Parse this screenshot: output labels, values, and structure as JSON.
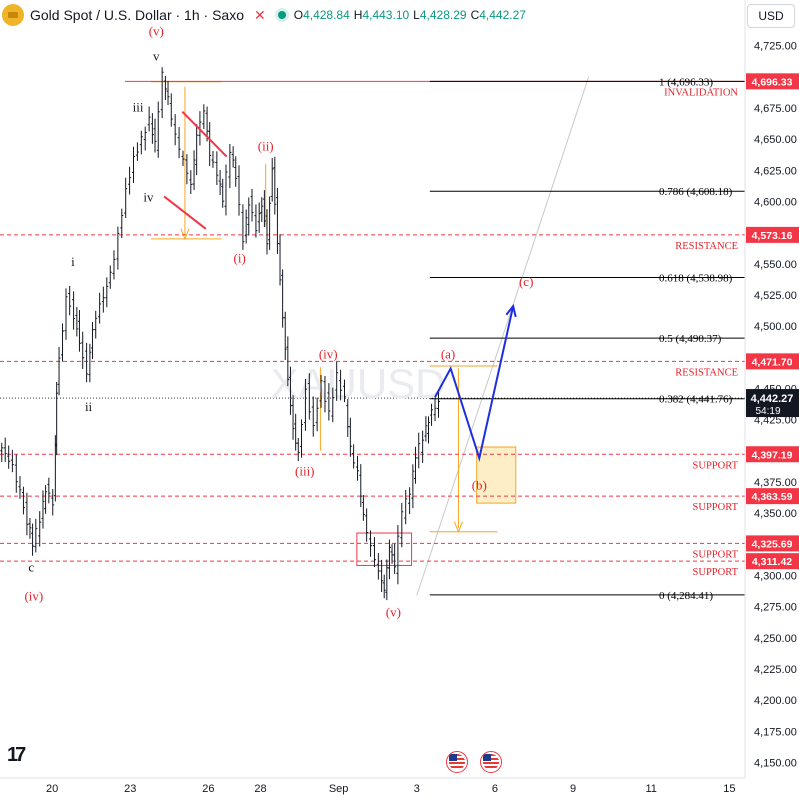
{
  "header": {
    "title": "Gold Spot / U.S. Dollar · 1h · Saxo",
    "close_icon": "close-x-icon",
    "open_label": "O",
    "open": "4,428.84",
    "high_label": "H",
    "high": "4,443.10",
    "low_label": "L",
    "low": "4,428.29",
    "close_label": "C",
    "close": "4,442.27"
  },
  "currency": "USD",
  "watermark": "XAUUSD",
  "colors": {
    "bull": "#089981",
    "bear": "#f23645",
    "fib": "#000000",
    "fib_box": "#f5a623",
    "wave_path": "#1f2fe0",
    "label_red": "#e3232c"
  },
  "chart_data": {
    "type": "line",
    "symbol": "XAUUSD",
    "interval": "1h",
    "y_axis": {
      "min": 4137.5,
      "max": 4737.5,
      "ticks": [
        4150,
        4175,
        4200,
        4225,
        4250,
        4275,
        4300,
        4325,
        4350,
        4375,
        4400,
        4425,
        4450,
        4475,
        4500,
        4525,
        4550,
        4575,
        4600,
        4625,
        4650,
        4675,
        4700,
        4725
      ],
      "tick_labels": [
        "4,150.00",
        "4,175.00",
        "4,200.00",
        "4,225.00",
        "4,250.00",
        "4,275.00",
        "4,300.00",
        "4,325.00",
        "4,350.00",
        "4,375.00",
        "4,400.00",
        "4,425.00",
        "4,450.00",
        "4,475.00",
        "4,500.00",
        "4,525.00",
        "4,550.00",
        "4,575.00",
        "4,600.00",
        "4,625.00",
        "4,650.00",
        "4,675.00",
        "4,700.00",
        "4,725.00"
      ]
    },
    "x_axis": {
      "min": 18.0,
      "max": 46.6,
      "ticks": [
        {
          "x": 20,
          "label": "20"
        },
        {
          "x": 23,
          "label": "23"
        },
        {
          "x": 26,
          "label": "26"
        },
        {
          "x": 28,
          "label": "28"
        },
        {
          "x": 31,
          "label": "Sep"
        },
        {
          "x": 34,
          "label": "3"
        },
        {
          "x": 37,
          "label": "6"
        },
        {
          "x": 40,
          "label": "9"
        },
        {
          "x": 43,
          "label": "11"
        },
        {
          "x": 46,
          "label": "15"
        }
      ]
    },
    "price_path": [
      [
        18.0,
        4400
      ],
      [
        18.4,
        4395
      ],
      [
        18.7,
        4375
      ],
      [
        19.1,
        4345
      ],
      [
        19.3,
        4325
      ],
      [
        19.6,
        4345
      ],
      [
        19.8,
        4370
      ],
      [
        20.1,
        4360
      ],
      [
        20.2,
        4450
      ],
      [
        20.6,
        4525
      ],
      [
        20.9,
        4510
      ],
      [
        21.1,
        4490
      ],
      [
        21.4,
        4465
      ],
      [
        21.6,
        4500
      ],
      [
        21.9,
        4520
      ],
      [
        22.3,
        4540
      ],
      [
        22.6,
        4575
      ],
      [
        22.9,
        4610
      ],
      [
        23.2,
        4635
      ],
      [
        23.5,
        4650
      ],
      [
        23.8,
        4665
      ],
      [
        24.0,
        4645
      ],
      [
        24.3,
        4700
      ],
      [
        24.5,
        4680
      ],
      [
        24.8,
        4650
      ],
      [
        25.1,
        4630
      ],
      [
        25.4,
        4610
      ],
      [
        25.6,
        4650
      ],
      [
        25.9,
        4670
      ],
      [
        26.1,
        4635
      ],
      [
        26.4,
        4620
      ],
      [
        26.6,
        4600
      ],
      [
        26.9,
        4640
      ],
      [
        27.1,
        4620
      ],
      [
        27.4,
        4570
      ],
      [
        27.6,
        4600
      ],
      [
        27.9,
        4580
      ],
      [
        28.1,
        4600
      ],
      [
        28.3,
        4570
      ],
      [
        28.5,
        4630
      ],
      [
        28.7,
        4570
      ],
      [
        28.9,
        4510
      ],
      [
        29.1,
        4460
      ],
      [
        29.3,
        4420
      ],
      [
        29.5,
        4400
      ],
      [
        29.8,
        4450
      ],
      [
        30.1,
        4420
      ],
      [
        30.4,
        4455
      ],
      [
        30.7,
        4430
      ],
      [
        31.0,
        4460
      ],
      [
        31.3,
        4440
      ],
      [
        31.5,
        4400
      ],
      [
        31.8,
        4380
      ],
      [
        32.0,
        4345
      ],
      [
        32.3,
        4320
      ],
      [
        32.6,
        4300
      ],
      [
        32.8,
        4285
      ],
      [
        33.0,
        4320
      ],
      [
        33.2,
        4305
      ],
      [
        33.5,
        4350
      ],
      [
        33.8,
        4365
      ],
      [
        34.0,
        4395
      ],
      [
        34.3,
        4410
      ],
      [
        34.5,
        4425
      ],
      [
        34.9,
        4443
      ]
    ],
    "levels": [
      {
        "label": "1 (4,696.33)",
        "price": 4696.33,
        "kind": "fib"
      },
      {
        "label": "0.786 (4,608.18)",
        "price": 4608.18,
        "kind": "fib"
      },
      {
        "label": "0.618 (4,538.98)",
        "price": 4538.98,
        "kind": "fib"
      },
      {
        "label": "0.5 (4,490.37)",
        "price": 4490.37,
        "kind": "fib"
      },
      {
        "label": "0.382 (4,441.76)",
        "price": 4441.76,
        "kind": "fib"
      },
      {
        "label": "0 (4,284.41)",
        "price": 4284.41,
        "kind": "fib"
      }
    ],
    "zones": [
      {
        "label": "INVALIDATION",
        "price": 4696.33,
        "price_label": "4,696.33"
      },
      {
        "label": "RESISTANCE",
        "price": 4573.16,
        "price_label": "4,573.16"
      },
      {
        "label": "RESISTANCE",
        "price": 4471.7,
        "price_label": "4,471.70"
      },
      {
        "label": "SUPPORT",
        "price": 4397.19,
        "price_label": "4,397.19"
      },
      {
        "label": "SUPPORT",
        "price": 4363.59,
        "price_label": "4,363.59"
      },
      {
        "label": "SUPPORT",
        "price": 4325.69,
        "price_label": "4,325.69"
      },
      {
        "label": "SUPPORT",
        "price": 4311.42,
        "price_label": "4,311.42"
      }
    ],
    "current_price": {
      "price": 4442.27,
      "label": "4,442.27",
      "countdown": "54:19"
    },
    "wave_labels": [
      {
        "text": "c",
        "x": 19.2,
        "price": 4303,
        "color": "black"
      },
      {
        "text": "(iv)",
        "x": 19.3,
        "price": 4280,
        "color": "red"
      },
      {
        "text": "i",
        "x": 20.8,
        "price": 4548,
        "color": "black"
      },
      {
        "text": "ii",
        "x": 21.4,
        "price": 4432,
        "color": "black"
      },
      {
        "text": "iii",
        "x": 23.3,
        "price": 4672,
        "color": "black"
      },
      {
        "text": "iv",
        "x": 23.7,
        "price": 4600,
        "color": "black"
      },
      {
        "text": "v",
        "x": 24.0,
        "price": 4713,
        "color": "black"
      },
      {
        "text": "(v)",
        "x": 24.0,
        "price": 4733,
        "color": "red"
      },
      {
        "text": "(i)",
        "x": 27.2,
        "price": 4551,
        "color": "red"
      },
      {
        "text": "(ii)",
        "x": 28.2,
        "price": 4641,
        "color": "red"
      },
      {
        "text": "(iii)",
        "x": 29.7,
        "price": 4380,
        "color": "red"
      },
      {
        "text": "(iv)",
        "x": 30.6,
        "price": 4474,
        "color": "red"
      },
      {
        "text": "(v)",
        "x": 33.1,
        "price": 4267,
        "color": "red"
      },
      {
        "text": "(a)",
        "x": 35.2,
        "price": 4474,
        "color": "red"
      },
      {
        "text": "(b)",
        "x": 36.4,
        "price": 4369,
        "color": "red"
      },
      {
        "text": "(c)",
        "x": 38.2,
        "price": 4532,
        "color": "red"
      }
    ],
    "projection_path": [
      [
        34.7,
        4443
      ],
      [
        35.3,
        4466
      ],
      [
        36.4,
        4394
      ],
      [
        37.7,
        4516
      ]
    ],
    "wedge_lines": [
      [
        [
          25.0,
          4672
        ],
        [
          26.7,
          4636
        ]
      ],
      [
        [
          24.3,
          4604
        ],
        [
          25.9,
          4578
        ]
      ]
    ]
  }
}
